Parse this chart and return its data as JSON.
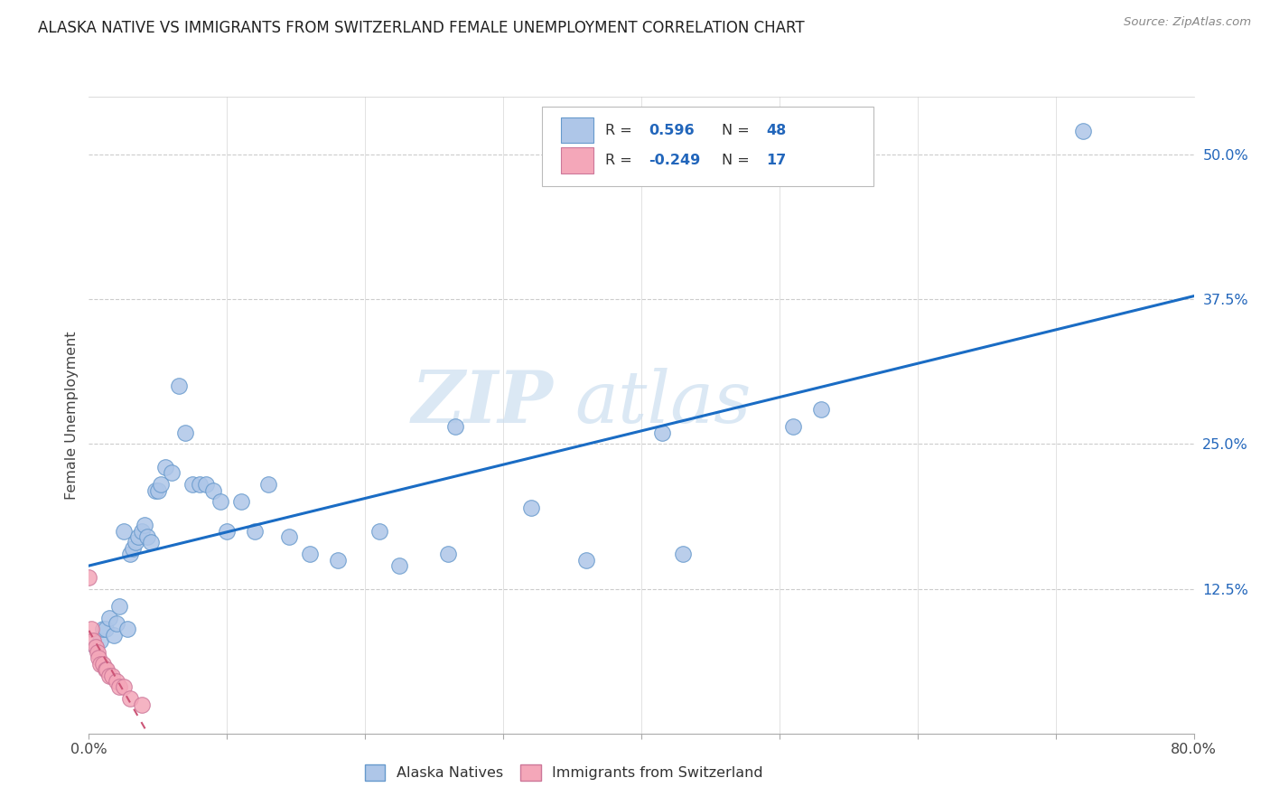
{
  "title": "ALASKA NATIVE VS IMMIGRANTS FROM SWITZERLAND FEMALE UNEMPLOYMENT CORRELATION CHART",
  "source": "Source: ZipAtlas.com",
  "ylabel": "Female Unemployment",
  "legend_bottom": [
    "Alaska Natives",
    "Immigrants from Switzerland"
  ],
  "alaska_R": 0.596,
  "alaska_N": 48,
  "swiss_R": -0.249,
  "swiss_N": 17,
  "xlim": [
    0.0,
    0.8
  ],
  "ylim": [
    0.0,
    0.55
  ],
  "xtick_positions": [
    0.0,
    0.1,
    0.2,
    0.3,
    0.4,
    0.5,
    0.6,
    0.7,
    0.8
  ],
  "xticklabels": [
    "0.0%",
    "",
    "",
    "",
    "",
    "",
    "",
    "",
    "80.0%"
  ],
  "yticks_right": [
    0.0,
    0.125,
    0.25,
    0.375,
    0.5
  ],
  "ytick_labels_right": [
    "",
    "12.5%",
    "25.0%",
    "37.5%",
    "50.0%"
  ],
  "alaska_color": "#aec6e8",
  "alaska_edge": "#6699cc",
  "swiss_color": "#f4a7b9",
  "swiss_edge": "#cc7799",
  "line_alaska_color": "#1a6cc4",
  "line_swiss_color": "#cc5577",
  "watermark_zip": "ZIP",
  "watermark_atlas": "atlas",
  "alaska_x": [
    0.005,
    0.008,
    0.01,
    0.012,
    0.015,
    0.018,
    0.02,
    0.022,
    0.025,
    0.028,
    0.03,
    0.032,
    0.034,
    0.036,
    0.038,
    0.04,
    0.042,
    0.045,
    0.048,
    0.05,
    0.052,
    0.055,
    0.06,
    0.065,
    0.07,
    0.075,
    0.08,
    0.085,
    0.09,
    0.095,
    0.1,
    0.11,
    0.12,
    0.13,
    0.145,
    0.16,
    0.18,
    0.21,
    0.225,
    0.26,
    0.265,
    0.32,
    0.36,
    0.415,
    0.43,
    0.51,
    0.53,
    0.72
  ],
  "alaska_y": [
    0.075,
    0.08,
    0.09,
    0.09,
    0.1,
    0.085,
    0.095,
    0.11,
    0.175,
    0.09,
    0.155,
    0.16,
    0.165,
    0.17,
    0.175,
    0.18,
    0.17,
    0.165,
    0.21,
    0.21,
    0.215,
    0.23,
    0.225,
    0.3,
    0.26,
    0.215,
    0.215,
    0.215,
    0.21,
    0.2,
    0.175,
    0.2,
    0.175,
    0.215,
    0.17,
    0.155,
    0.15,
    0.175,
    0.145,
    0.155,
    0.265,
    0.195,
    0.15,
    0.26,
    0.155,
    0.265,
    0.28,
    0.52
  ],
  "swiss_x": [
    0.0,
    0.002,
    0.003,
    0.005,
    0.006,
    0.007,
    0.008,
    0.01,
    0.012,
    0.013,
    0.015,
    0.017,
    0.02,
    0.022,
    0.025,
    0.03,
    0.038
  ],
  "swiss_y": [
    0.135,
    0.09,
    0.08,
    0.075,
    0.07,
    0.065,
    0.06,
    0.06,
    0.055,
    0.055,
    0.05,
    0.05,
    0.045,
    0.04,
    0.04,
    0.03,
    0.025
  ]
}
